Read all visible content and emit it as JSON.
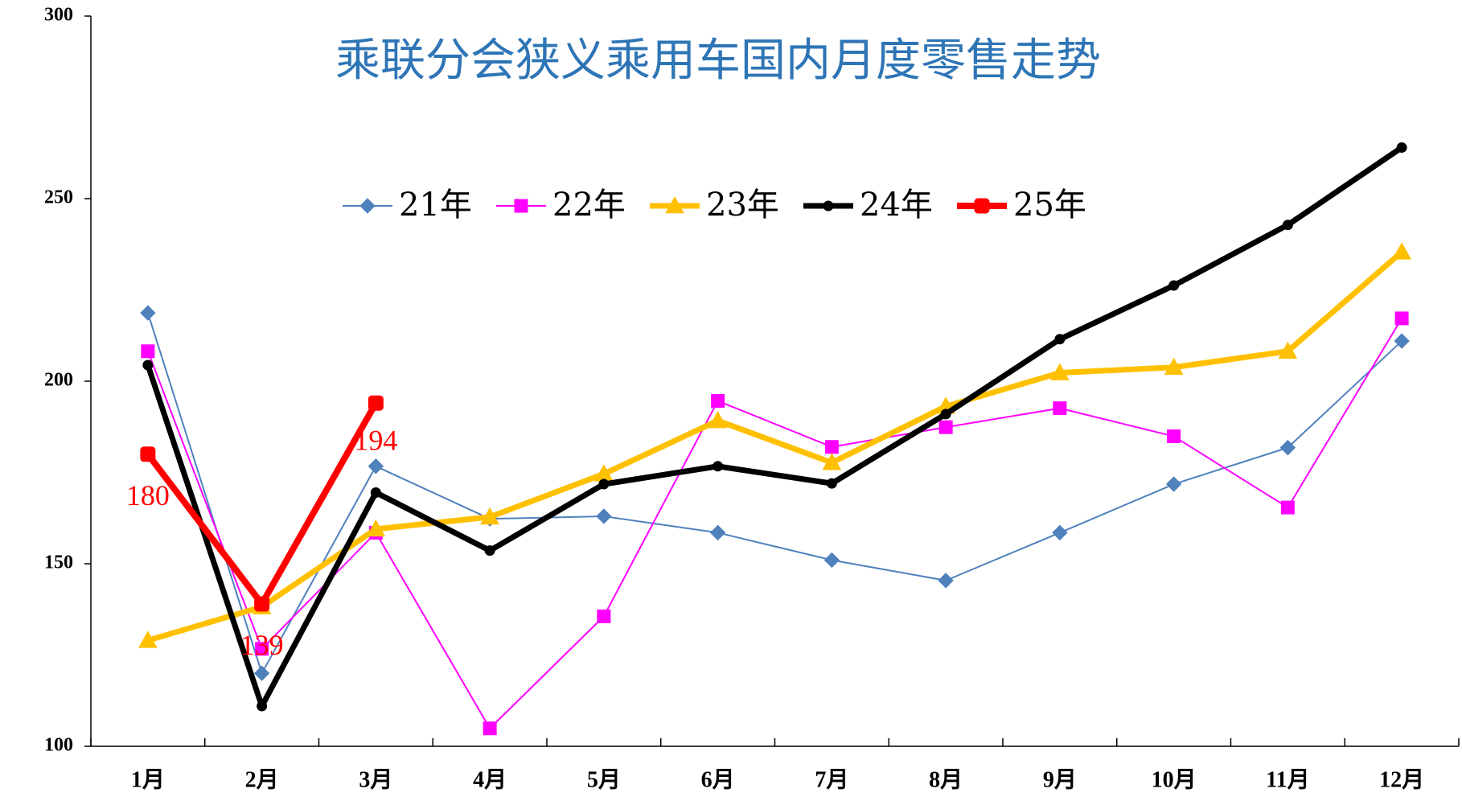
{
  "chart_data": {
    "type": "line",
    "title": "乘联分会狭义乘用车国内月度零售走势",
    "categories": [
      "1月",
      "2月",
      "3月",
      "4月",
      "5月",
      "6月",
      "7月",
      "8月",
      "9月",
      "10月",
      "11月",
      "12月"
    ],
    "ylim": [
      100,
      300
    ],
    "yticks": [
      100,
      150,
      200,
      250,
      300
    ],
    "legend": "top",
    "series": [
      {
        "name": "21年",
        "color": "#4f81bd",
        "marker": "diamond",
        "values": [
          218.7,
          120,
          176.7,
          162.3,
          163,
          158.5,
          151,
          145.4,
          158.5,
          171.8,
          181.8,
          211
        ]
      },
      {
        "name": "22年",
        "color": "#ff00ff",
        "marker": "square",
        "values": [
          208.2,
          126.7,
          158.5,
          104.9,
          135.6,
          194.6,
          182,
          187.4,
          192.6,
          184.9,
          165.4,
          217.2
        ]
      },
      {
        "name": "23年",
        "color": "#ffc000",
        "marker": "triangle",
        "values": [
          129,
          138.2,
          159.5,
          162.8,
          174.6,
          189.2,
          177.7,
          193.1,
          202.3,
          203.8,
          208.2,
          235.4
        ]
      },
      {
        "name": "24年",
        "color": "#000000",
        "marker": "circle",
        "values": [
          204.4,
          111,
          169.5,
          153.6,
          171.8,
          176.7,
          172,
          191,
          211.5,
          226.2,
          242.8,
          264
        ]
      },
      {
        "name": "25年",
        "color": "#ff0000",
        "marker": "roundsquare",
        "data_labels": true,
        "values": [
          180,
          139,
          194,
          null,
          null,
          null,
          null,
          null,
          null,
          null,
          null,
          null
        ]
      }
    ]
  }
}
